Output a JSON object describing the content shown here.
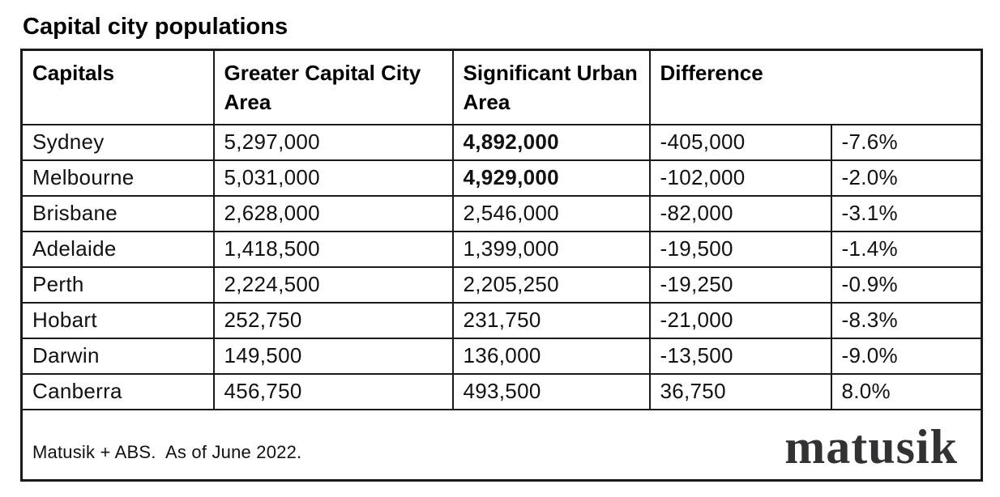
{
  "page_title": "Capital city populations",
  "table": {
    "headers": {
      "capitals": "Capitals",
      "gcca": "Greater Capital City Area",
      "sua": "Significant Urban Area",
      "difference": "Difference"
    },
    "rows": [
      {
        "city": "Sydney",
        "gcca": "5,297,000",
        "sua": "4,892,000",
        "diff": "-405,000",
        "pct": "-7.6%"
      },
      {
        "city": "Melbourne",
        "gcca": "5,031,000",
        "sua": "4,929,000",
        "diff": "-102,000",
        "pct": "-2.0%"
      },
      {
        "city": "Brisbane",
        "gcca": "2,628,000",
        "sua": "2,546,000",
        "diff": "-82,000",
        "pct": "-3.1%"
      },
      {
        "city": "Adelaide",
        "gcca": "1,418,500",
        "sua": "1,399,000",
        "diff": "-19,500",
        "pct": "-1.4%"
      },
      {
        "city": "Perth",
        "gcca": "2,224,500",
        "sua": "2,205,250",
        "diff": "-19,250",
        "pct": "-0.9%"
      },
      {
        "city": "Hobart",
        "gcca": "252,750",
        "sua": "231,750",
        "diff": "-21,000",
        "pct": "-8.3%"
      },
      {
        "city": "Darwin",
        "gcca": "149,500",
        "sua": "136,000",
        "diff": "-13,500",
        "pct": "-9.0%"
      },
      {
        "city": "Canberra",
        "gcca": "456,750",
        "sua": "493,500",
        "diff": "36,750",
        "pct": "8.0%"
      }
    ]
  },
  "footer": {
    "source_note": "Matusik + ABS.  As of June 2022.",
    "logo_text": "matusik"
  },
  "colors": {
    "background": "#ffffff",
    "text": "#111111",
    "border": "#1a1a1a",
    "logo": "#323234"
  },
  "chart_data": {
    "type": "table",
    "title": "Capital city populations",
    "columns": [
      "Capitals",
      "Greater Capital City Area",
      "Significant Urban Area",
      "Difference (persons)",
      "Difference (%)"
    ],
    "rows": [
      [
        "Sydney",
        5297000,
        4892000,
        -405000,
        -7.6
      ],
      [
        "Melbourne",
        5031000,
        4929000,
        -102000,
        -2.0
      ],
      [
        "Brisbane",
        2628000,
        2546000,
        -82000,
        -3.1
      ],
      [
        "Adelaide",
        1418500,
        1399000,
        -19500,
        -1.4
      ],
      [
        "Perth",
        2224500,
        2205250,
        -19250,
        -0.9
      ],
      [
        "Hobart",
        252750,
        231750,
        -21000,
        -8.3
      ],
      [
        "Darwin",
        149500,
        136000,
        -13500,
        -9.0
      ],
      [
        "Canberra",
        456750,
        493500,
        36750,
        8.0
      ]
    ],
    "emphasis": "Significant Urban Area values for Sydney and Melbourne are bold",
    "source": "Matusik + ABS.  As of June 2022."
  }
}
